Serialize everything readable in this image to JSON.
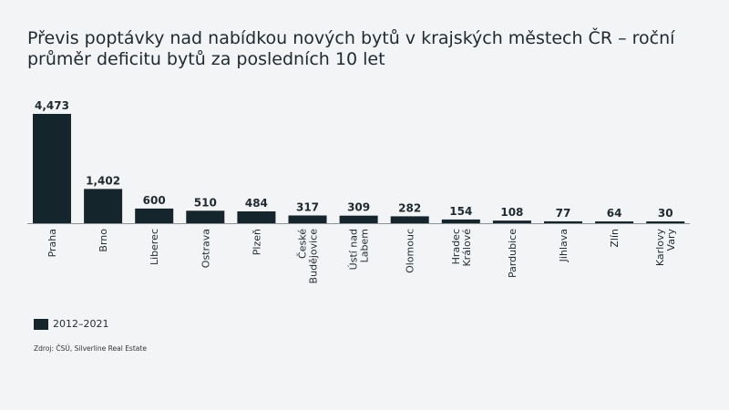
{
  "title_line1": "Převis poptávky nad nabídkou nových bytů v krajských městech ČR – roční",
  "title_line2": "průměr deficitu bytů za posledních 10 let",
  "legend_label": "2012–2021",
  "source": "Zdroj: ČSÚ, Silverline Real Estate",
  "colors": {
    "bar": "#14252b",
    "text": "#1f2a30",
    "background": "#f3f4f5"
  },
  "chart_data": {
    "type": "bar",
    "title": "Převis poptávky nad nabídkou nových bytů v krajských městech ČR – roční průměr deficitu bytů za posledních 10 let",
    "categories": [
      [
        "Praha"
      ],
      [
        "Brno"
      ],
      [
        "Liberec"
      ],
      [
        "Ostrava"
      ],
      [
        "Plzeň"
      ],
      [
        "České",
        "Budějovice"
      ],
      [
        "Ústí nad",
        "Labem"
      ],
      [
        "Olomouc"
      ],
      [
        "Hradec",
        "Králové"
      ],
      [
        "Pardubice"
      ],
      [
        "Jihlava"
      ],
      [
        "Zlín"
      ],
      [
        "Karlovy",
        "Vary"
      ]
    ],
    "series": [
      {
        "name": "2012–2021",
        "values": [
          4473,
          1402,
          600,
          510,
          484,
          317,
          309,
          282,
          154,
          108,
          77,
          64,
          30
        ],
        "labels": [
          "4,473",
          "1,402",
          "600",
          "510",
          "484",
          "317",
          "309",
          "282",
          "154",
          "108",
          "77",
          "64",
          "30"
        ]
      }
    ],
    "ylim": [
      0,
      4473
    ],
    "grid": false,
    "legend_position": "bottom-left"
  }
}
